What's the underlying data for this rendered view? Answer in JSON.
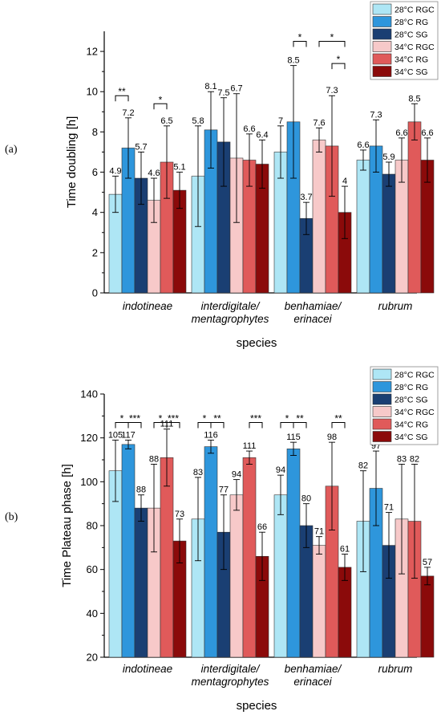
{
  "panels": [
    {
      "label": "(a)"
    },
    {
      "label": "(b)"
    }
  ],
  "chart_data": [
    {
      "type": "bar",
      "title": "",
      "xlabel": "species",
      "ylabel": "Time doubling [h]",
      "ylim": [
        0,
        13
      ],
      "yticks": [
        0,
        2,
        4,
        6,
        8,
        10,
        12
      ],
      "categories": [
        [
          "indotineae"
        ],
        [
          "interdigitale/",
          "mentagrophytes"
        ],
        [
          "benhamiae/",
          "erinacei"
        ],
        [
          "rubrum"
        ]
      ],
      "legend_position": "top-right",
      "series": [
        {
          "name": "28°C RGC",
          "color": "#aee6f5",
          "values": [
            4.9,
            5.8,
            7.0,
            6.6
          ],
          "labels": [
            "4.9",
            "5.8",
            "7",
            "6.6"
          ],
          "errors": [
            0.9,
            2.5,
            1.3,
            0.5
          ]
        },
        {
          "name": "28°C RG",
          "color": "#2e96dc",
          "values": [
            7.2,
            8.1,
            8.5,
            7.3
          ],
          "labels": [
            "7.2",
            "8.1",
            "8.5",
            "7.3"
          ],
          "errors": [
            1.5,
            1.9,
            2.8,
            1.3
          ]
        },
        {
          "name": "28°C SG",
          "color": "#1a3f73",
          "values": [
            5.7,
            7.5,
            3.7,
            5.9
          ],
          "labels": [
            "5.7",
            "7.5",
            "3.7",
            "5.9"
          ],
          "errors": [
            1.3,
            2.2,
            0.8,
            0.6
          ]
        },
        {
          "name": "34°C RGC",
          "color": "#f7c9c9",
          "values": [
            4.6,
            6.7,
            7.6,
            6.6
          ],
          "labels": [
            "4.6",
            "6.7",
            "7.6",
            "6.6"
          ],
          "errors": [
            1.1,
            3.2,
            0.6,
            1.1
          ]
        },
        {
          "name": "34°C RG",
          "color": "#e05a5a",
          "values": [
            6.5,
            6.6,
            7.3,
            8.5
          ],
          "labels": [
            "6.5",
            "6.6",
            "7.3",
            "8.5"
          ],
          "errors": [
            1.8,
            1.3,
            2.5,
            0.9
          ]
        },
        {
          "name": "34°C SG",
          "color": "#8b0a0a",
          "values": [
            5.1,
            6.4,
            4.0,
            6.6
          ],
          "labels": [
            "5.1",
            "6.4",
            "4",
            "6.6"
          ],
          "errors": [
            0.9,
            1.2,
            1.3,
            1.1
          ]
        }
      ],
      "significance": [
        {
          "group": 0,
          "from": 0,
          "to": 1,
          "mark": "**",
          "level": 9.8
        },
        {
          "group": 0,
          "from": 3,
          "to": 4,
          "mark": "*",
          "level": 9.4
        },
        {
          "group": 2,
          "from": 1,
          "to": 2,
          "mark": "*",
          "level": 12.5
        },
        {
          "group": 2,
          "from": 3,
          "to": 5,
          "mark": "*",
          "level": 12.5
        },
        {
          "group": 2,
          "from": 4,
          "to": 5,
          "mark": "*",
          "level": 11.4
        }
      ]
    },
    {
      "type": "bar",
      "title": "",
      "xlabel": "species",
      "ylabel": "Time Plateau phase [h]",
      "ylim": [
        20,
        140
      ],
      "yticks": [
        20,
        40,
        60,
        80,
        100,
        120,
        140
      ],
      "categories": [
        [
          "indotineae"
        ],
        [
          "interdigitale/",
          "mentagrophytes"
        ],
        [
          "benhamiae/",
          "erinacei"
        ],
        [
          "rubrum"
        ]
      ],
      "legend_position": "top-right",
      "series": [
        {
          "name": "28°C RGC",
          "color": "#aee6f5",
          "values": [
            105,
            83,
            94,
            82
          ],
          "labels": [
            "105",
            "83",
            "94",
            "82"
          ],
          "errors": [
            14,
            19,
            9,
            23
          ]
        },
        {
          "name": "28°C RG",
          "color": "#2e96dc",
          "values": [
            117,
            116,
            115,
            97
          ],
          "labels": [
            "117",
            "116",
            "115",
            "97"
          ],
          "errors": [
            2,
            3,
            3,
            17
          ]
        },
        {
          "name": "28°C SG",
          "color": "#1a3f73",
          "values": [
            88,
            77,
            80,
            71
          ],
          "labels": [
            "88",
            "77",
            "80",
            "71"
          ],
          "errors": [
            6,
            17,
            10,
            15
          ]
        },
        {
          "name": "34°C RGC",
          "color": "#f7c9c9",
          "values": [
            88,
            94,
            71,
            83
          ],
          "labels": [
            "88",
            "94",
            "71",
            "83"
          ],
          "errors": [
            20,
            7,
            4,
            25
          ]
        },
        {
          "name": "34°C RG",
          "color": "#e05a5a",
          "values": [
            111,
            111,
            98,
            82
          ],
          "labels": [
            "111",
            "111",
            "98",
            "82"
          ],
          "errors": [
            13,
            3,
            20,
            26
          ]
        },
        {
          "name": "34°C SG",
          "color": "#8b0a0a",
          "values": [
            73,
            66,
            61,
            57
          ],
          "labels": [
            "73",
            "66",
            "61",
            "57"
          ],
          "errors": [
            10,
            11,
            6,
            4
          ]
        }
      ],
      "significance": [
        {
          "group": 0,
          "from": 0,
          "to": 1,
          "mark": "*",
          "level": 127
        },
        {
          "group": 0,
          "from": 1,
          "to": 2,
          "mark": "***",
          "level": 127
        },
        {
          "group": 0,
          "from": 3,
          "to": 4,
          "mark": "*",
          "level": 127
        },
        {
          "group": 0,
          "from": 4,
          "to": 5,
          "mark": "***",
          "level": 127
        },
        {
          "group": 1,
          "from": 0,
          "to": 1,
          "mark": "*",
          "level": 127
        },
        {
          "group": 1,
          "from": 1,
          "to": 2,
          "mark": "**",
          "level": 127
        },
        {
          "group": 1,
          "from": 4,
          "to": 5,
          "mark": "***",
          "level": 127
        },
        {
          "group": 2,
          "from": 0,
          "to": 1,
          "mark": "*",
          "level": 127
        },
        {
          "group": 2,
          "from": 1,
          "to": 2,
          "mark": "**",
          "level": 127
        },
        {
          "group": 2,
          "from": 4,
          "to": 5,
          "mark": "**",
          "level": 127
        }
      ]
    }
  ]
}
